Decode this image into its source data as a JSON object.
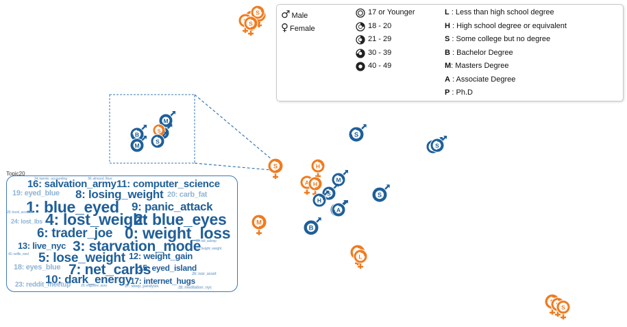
{
  "legend": {
    "gender": [
      {
        "symbol": "♂",
        "label": "Male"
      },
      {
        "symbol": "♀",
        "label": "Female"
      }
    ],
    "age_groups": [
      "17 or Younger",
      "18 - 20",
      "21 - 29",
      "30 - 39",
      "40 - 49"
    ],
    "education": [
      {
        "code": "L",
        "label": " : Less than high school degree"
      },
      {
        "code": "H",
        "label": " : High school degree or equivalent"
      },
      {
        "code": "S",
        "label": " : Some college but no degree"
      },
      {
        "code": "B",
        "label": " : Bachelor Degree"
      },
      {
        "code": "M",
        "label": ": Masters Degree"
      },
      {
        "code": "A",
        "label": " : Associate Degree"
      },
      {
        "code": "P",
        "label": " : Ph.D"
      }
    ]
  },
  "colors": {
    "male": "#1f5f99",
    "female": "#f07b1f",
    "topic_dark": "#1f5f99",
    "topic_light": "#8fb4d6"
  },
  "topic_box": {
    "title": "Topic20",
    "words": [
      {
        "text": "16: salvation_army",
        "emphasis": "mid"
      },
      {
        "text": "11: computer_science",
        "emphasis": "mid"
      },
      {
        "text": "19: eyed_blue",
        "emphasis": "low"
      },
      {
        "text": "8: losing_weight",
        "emphasis": "high"
      },
      {
        "text": "20: carb_fat",
        "emphasis": "low"
      },
      {
        "text": "1: blue_eyed",
        "emphasis": "max"
      },
      {
        "text": "9: panic_attack",
        "emphasis": "high"
      },
      {
        "text": "24: lost_lbs",
        "emphasis": "low"
      },
      {
        "text": "4: lost_weight",
        "emphasis": "max"
      },
      {
        "text": "2: blue_eyes",
        "emphasis": "max"
      },
      {
        "text": "6: trader_joe",
        "emphasis": "high"
      },
      {
        "text": "0: weight_loss",
        "emphasis": "max"
      },
      {
        "text": "13: live_nyc",
        "emphasis": "mid"
      },
      {
        "text": "3: starvation_mode",
        "emphasis": "max"
      },
      {
        "text": "5: lose_weight",
        "emphasis": "max"
      },
      {
        "text": "12: weight_gain",
        "emphasis": "mid"
      },
      {
        "text": "18: eyes_blue",
        "emphasis": "low"
      },
      {
        "text": "7: net_carbs",
        "emphasis": "max"
      },
      {
        "text": "15: eyed_island",
        "emphasis": "mid"
      },
      {
        "text": "10: dark_energy",
        "emphasis": "high"
      },
      {
        "text": "17: internet_hugs",
        "emphasis": "mid"
      },
      {
        "text": "23: reddit_meetup",
        "emphasis": "low"
      },
      {
        "text": "34: karmic_accounting",
        "emphasis": "tiny"
      },
      {
        "text": "36: almond_flour",
        "emphasis": "tiny"
      },
      {
        "text": "25: book_account",
        "emphasis": "tiny"
      },
      {
        "text": "35: loli_asleep",
        "emphasis": "tiny"
      },
      {
        "text": "21: height_weight",
        "emphasis": "tiny"
      },
      {
        "text": "41: selfie_wed",
        "emphasis": "tiny"
      },
      {
        "text": "26: war_asset",
        "emphasis": "tiny"
      },
      {
        "text": "29: migraine_aura",
        "emphasis": "tiny"
      },
      {
        "text": "27: sleep_paralysis",
        "emphasis": "tiny"
      },
      {
        "text": "28: meditation_nyc",
        "emphasis": "tiny"
      }
    ]
  },
  "glyphs": [
    {
      "gender": "female",
      "edu": "B",
      "age": 2
    },
    {
      "gender": "female",
      "edu": "S",
      "age": 1
    },
    {
      "gender": "female",
      "edu": "S",
      "age": 0
    },
    {
      "gender": "male",
      "edu": "S",
      "age": 3
    },
    {
      "gender": "male",
      "edu": "M",
      "age": 4
    },
    {
      "gender": "male",
      "edu": "H",
      "age": 2
    },
    {
      "gender": "female",
      "edu": "S",
      "age": 2
    },
    {
      "gender": "female",
      "edu": "H",
      "age": 1
    },
    {
      "gender": "female",
      "edu": "A",
      "age": 0
    },
    {
      "gender": "female",
      "edu": "H",
      "age": 2
    },
    {
      "gender": "male",
      "edu": "M",
      "age": 1
    },
    {
      "gender": "male",
      "edu": "A",
      "age": 0
    },
    {
      "gender": "male",
      "edu": "S",
      "age": 2
    },
    {
      "gender": "male",
      "edu": "H",
      "age": 1
    },
    {
      "gender": "male",
      "edu": "A",
      "age": 3
    },
    {
      "gender": "male",
      "edu": "S",
      "age": 4
    },
    {
      "gender": "male",
      "edu": "B",
      "age": 4
    },
    {
      "gender": "male",
      "edu": "H",
      "age": 1
    },
    {
      "gender": "male",
      "edu": "S",
      "age": 2
    },
    {
      "gender": "female",
      "edu": "M",
      "age": 2
    },
    {
      "gender": "female",
      "edu": "L",
      "age": 1
    },
    {
      "gender": "female",
      "edu": "L",
      "age": 1
    },
    {
      "gender": "female",
      "edu": "S",
      "age": 2
    },
    {
      "gender": "male",
      "edu": "B",
      "age": 3
    },
    {
      "gender": "male",
      "edu": "M",
      "age": 4
    },
    {
      "gender": "male",
      "edu": "S",
      "age": 2
    },
    {
      "gender": "female",
      "edu": "S",
      "age": 1
    },
    {
      "gender": "female",
      "edu": "S",
      "age": 1
    },
    {
      "gender": "female",
      "edu": "S",
      "age": 0
    },
    {
      "gender": "female",
      "edu": "S",
      "age": 1
    },
    {
      "gender": "female",
      "edu": "S",
      "age": 2
    }
  ]
}
